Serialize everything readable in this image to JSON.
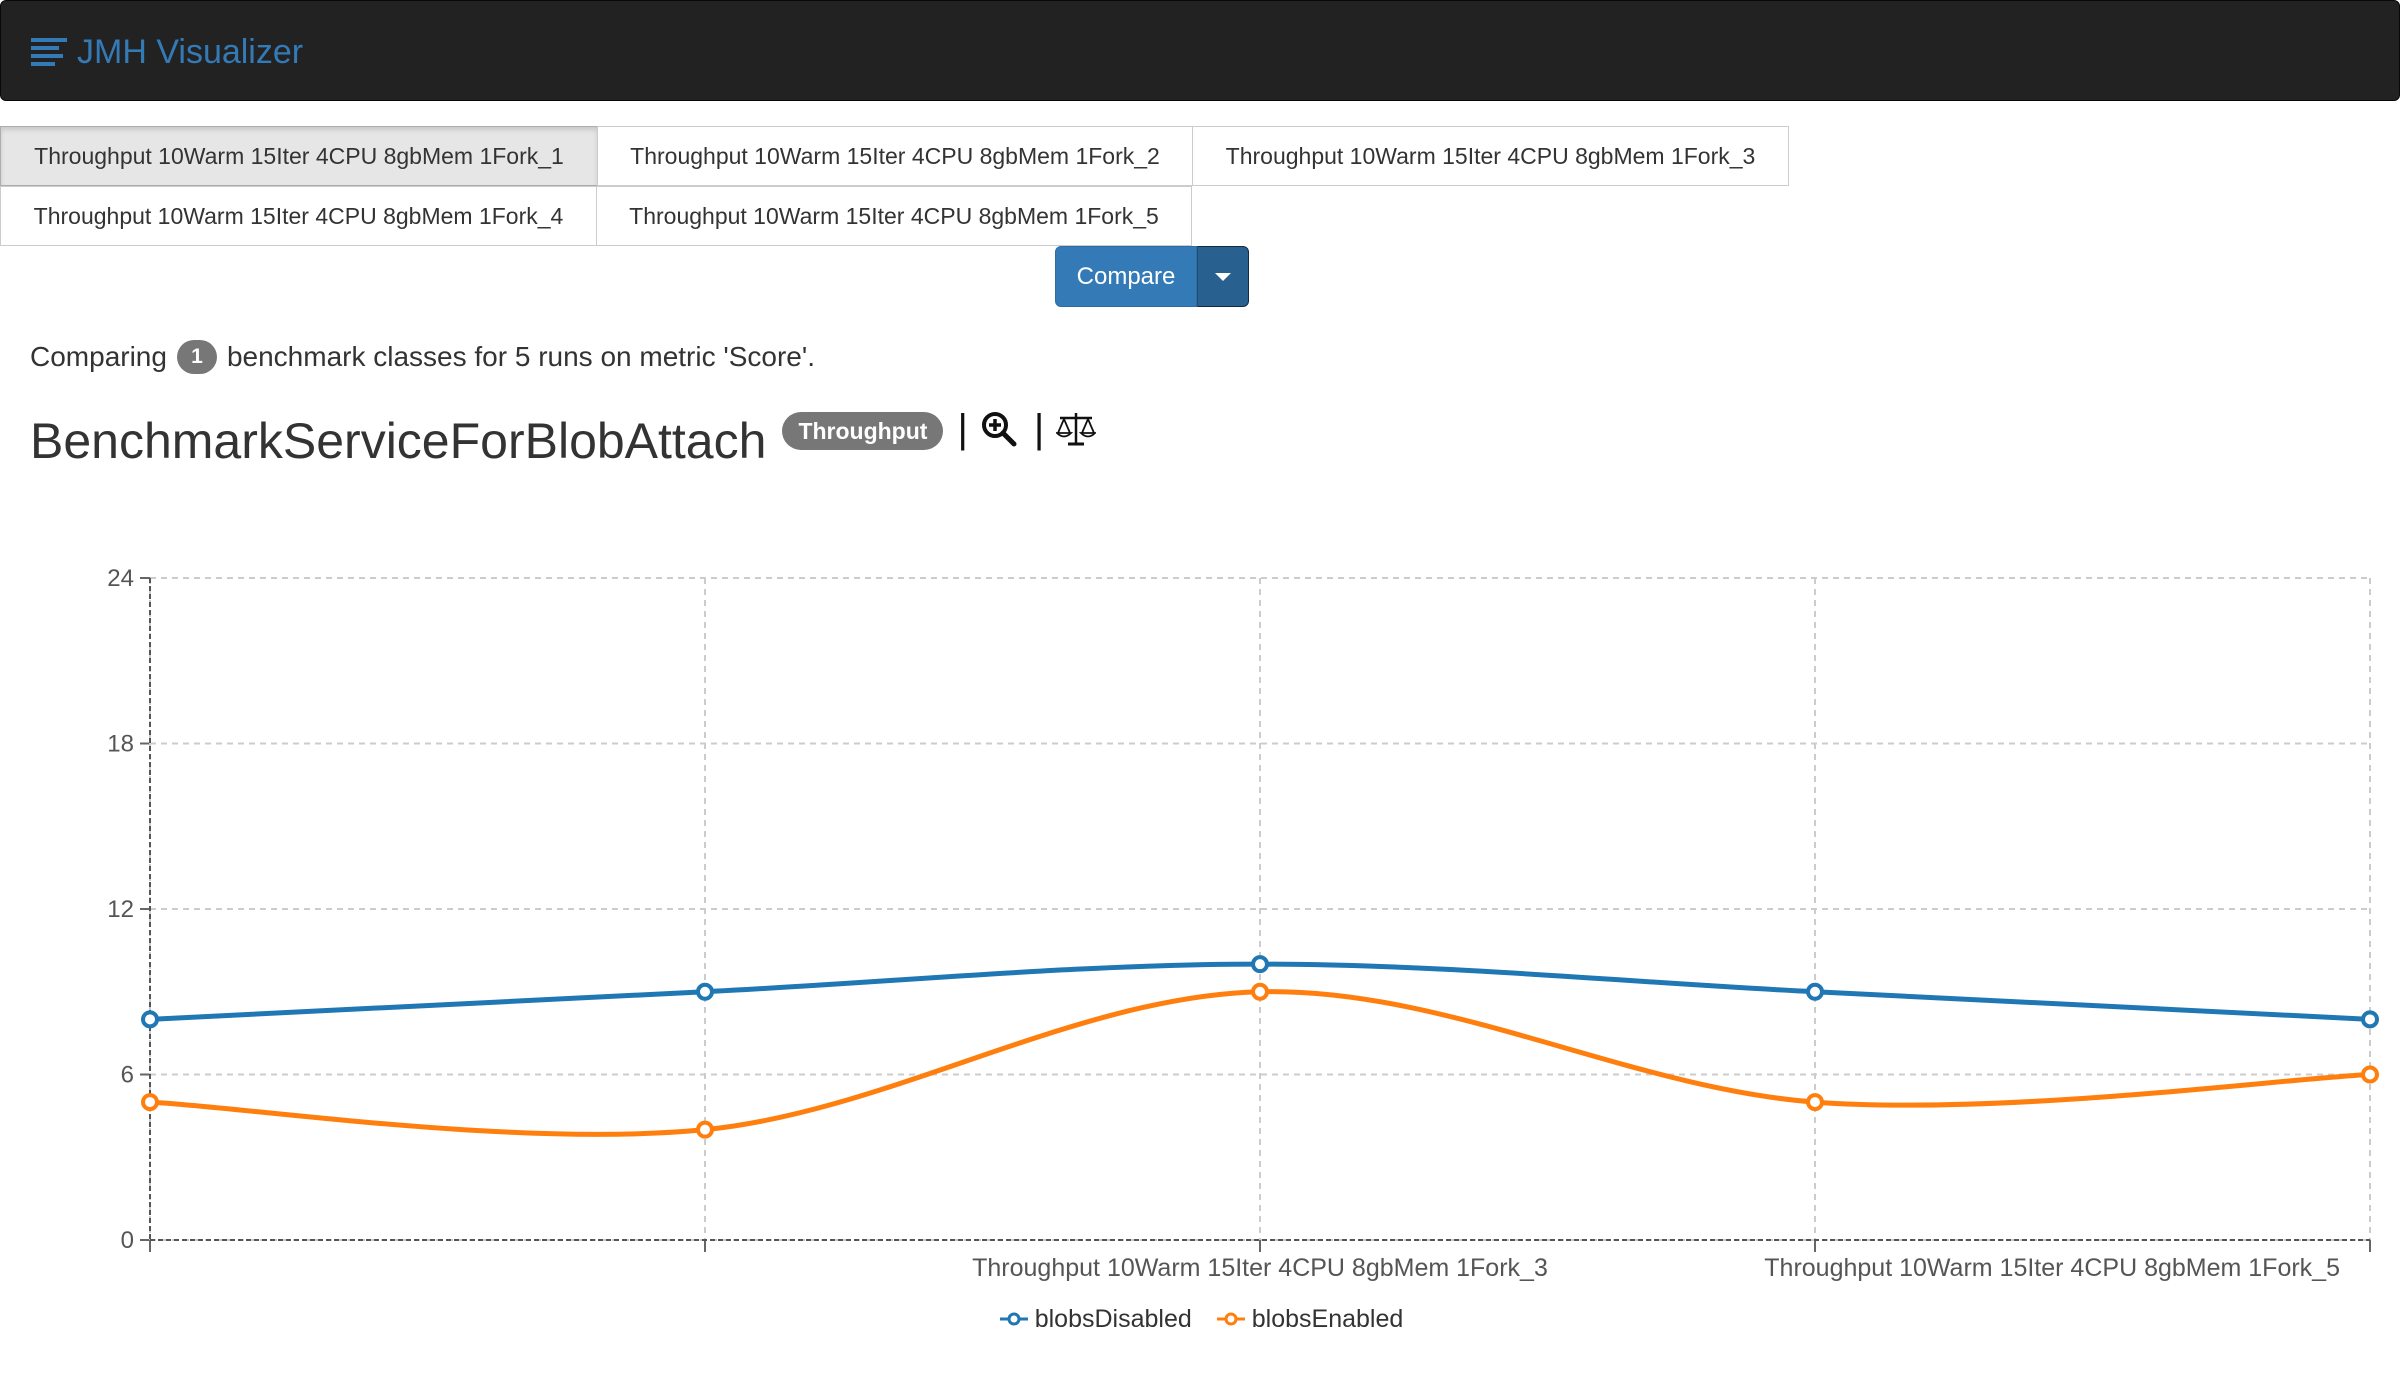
{
  "navbar": {
    "brand": "JMH Visualizer",
    "brand_icon": "align-left-icon"
  },
  "runs": [
    {
      "label": "Throughput 10Warm 15Iter 4CPU 8gbMem 1Fork_1",
      "active": true
    },
    {
      "label": "Throughput 10Warm 15Iter 4CPU 8gbMem 1Fork_2",
      "active": false
    },
    {
      "label": "Throughput 10Warm 15Iter 4CPU 8gbMem 1Fork_3",
      "active": false
    },
    {
      "label": "Throughput 10Warm 15Iter 4CPU 8gbMem 1Fork_4",
      "active": false
    },
    {
      "label": "Throughput 10Warm 15Iter 4CPU 8gbMem 1Fork_5",
      "active": false
    }
  ],
  "compare": {
    "label": "Compare"
  },
  "summary": {
    "prefix": "Comparing",
    "count": "1",
    "suffix": "benchmark classes for 5 runs on metric 'Score'."
  },
  "benchmark": {
    "title": "BenchmarkServiceForBlobAttach",
    "mode_badge": "Throughput",
    "separator": "|",
    "icons": [
      "zoom-in-icon",
      "balance-scale-icon"
    ]
  },
  "colors": {
    "navbar_bg": "#222222",
    "brand": "#337ab7",
    "button_primary": "#337ab7",
    "badge": "#777777",
    "series_blobsDisabled": "#1f77b4",
    "series_blobsEnabled": "#ff7f0e"
  },
  "chart_data": {
    "type": "line",
    "title": "",
    "xlabel": "",
    "ylabel": "",
    "x": [
      "Throughput 10Warm 15Iter 4CPU 8gbMem 1Fork_1",
      "Throughput 10Warm 15Iter 4CPU 8gbMem 1Fork_2",
      "Throughput 10Warm 15Iter 4CPU 8gbMem 1Fork_3",
      "Throughput 10Warm 15Iter 4CPU 8gbMem 1Fork_4",
      "Throughput 10Warm 15Iter 4CPU 8gbMem 1Fork_5"
    ],
    "x_tick_labels_shown": [
      "Throughput 10Warm 15Iter 4CPU 8gbMem 1Fork_3",
      "Throughput 10Warm 15Iter 4CPU 8gbMem 1Fork_5"
    ],
    "ylim": [
      0,
      24
    ],
    "yticks": [
      0,
      6,
      12,
      18,
      24
    ],
    "grid": true,
    "legend": "bottom",
    "curve": "smooth",
    "series": [
      {
        "name": "blobsDisabled",
        "values": [
          8,
          9,
          10,
          9,
          8
        ]
      },
      {
        "name": "blobsEnabled",
        "values": [
          5,
          4,
          9,
          5,
          6
        ]
      }
    ]
  }
}
